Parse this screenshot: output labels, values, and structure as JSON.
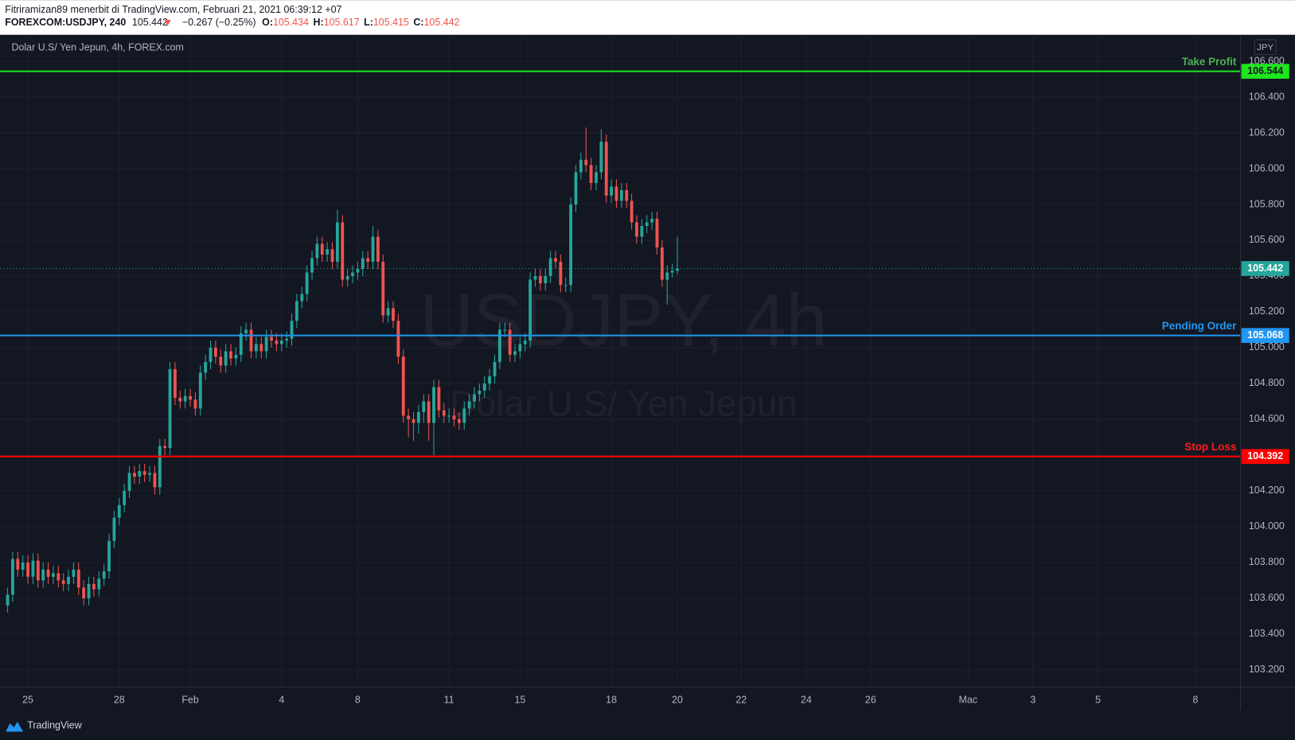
{
  "header": {
    "publisher": "Fitriramizan89 menerbit di TradingView.com, Februari 21, 2021 06:39:12 +07",
    "symbol": "FOREXCOM:USDJPY, 240",
    "last": "105.442",
    "change": "−0.267 (−0.25%)",
    "ohlc": [
      {
        "label": "O:",
        "value": "105.434"
      },
      {
        "label": "H:",
        "value": "105.617"
      },
      {
        "label": "L:",
        "value": "105.415"
      },
      {
        "label": "C:",
        "value": "105.442"
      }
    ]
  },
  "footer": {
    "brand": "TradingView"
  },
  "chart_data": {
    "type": "candlestick",
    "title": "Dolar U.S/ Yen Jepun, 4h, FOREX.com",
    "watermark": [
      "USDJPY, 4h",
      "Dolar U.S/ Yen Jepun"
    ],
    "currency": "JPY",
    "up_color": "#26a69a",
    "down_color": "#ef5350",
    "grid": true,
    "open": [
      103.56,
      103.62,
      103.82,
      103.76,
      103.8,
      103.72,
      103.81,
      103.7,
      103.76,
      103.72,
      103.74,
      103.7,
      103.68,
      103.72,
      103.76,
      103.66,
      103.6,
      103.68,
      103.65,
      103.71,
      103.75,
      103.92,
      104.05,
      104.12,
      104.2,
      104.3,
      104.28,
      104.31,
      104.29,
      104.3,
      104.22,
      104.45,
      104.44,
      104.88,
      104.72,
      104.7,
      104.73,
      104.71,
      104.66,
      104.86,
      104.92,
      105.0,
      104.95,
      104.9,
      104.98,
      104.94,
      104.96,
      105.08,
      105.1,
      104.98,
      105.02,
      104.98,
      105.06,
      105.04,
      105.02,
      105.04,
      105.05,
      105.15,
      105.26,
      105.3,
      105.42,
      105.5,
      105.58,
      105.52,
      105.55,
      105.48,
      105.7,
      105.38,
      105.4,
      105.42,
      105.44,
      105.5,
      105.48,
      105.62,
      105.48,
      105.18,
      105.22,
      105.15,
      104.95,
      104.62,
      104.6,
      104.58,
      104.64,
      104.7,
      104.58,
      104.78,
      104.65,
      104.62,
      104.62,
      104.6,
      104.58,
      104.66,
      104.7,
      104.74,
      104.76,
      104.8,
      104.84,
      104.92,
      105.1,
      105.1,
      104.96,
      104.98,
      105.02,
      105.04,
      105.38,
      105.4,
      105.36,
      105.4,
      105.5,
      105.48,
      105.35,
      105.35,
      105.8,
      105.98,
      106.05,
      106.02,
      105.92,
      105.98,
      106.15,
      105.85,
      105.9,
      105.82,
      105.88,
      105.82,
      105.7,
      105.62,
      105.68,
      105.7,
      105.72,
      105.56,
      105.38,
      105.42,
      105.43
    ],
    "high": [
      103.66,
      103.86,
      103.86,
      103.84,
      103.84,
      103.85,
      103.85,
      103.8,
      103.8,
      103.78,
      103.78,
      103.74,
      103.76,
      103.8,
      103.8,
      103.7,
      103.72,
      103.72,
      103.75,
      103.79,
      103.96,
      104.09,
      104.16,
      104.24,
      104.34,
      104.34,
      104.35,
      104.35,
      104.34,
      104.34,
      104.49,
      104.49,
      104.92,
      104.92,
      104.76,
      104.77,
      104.77,
      104.75,
      104.9,
      104.96,
      105.04,
      105.04,
      104.99,
      105.02,
      105.02,
      105.0,
      105.12,
      105.14,
      105.14,
      105.06,
      105.06,
      105.1,
      105.1,
      105.08,
      105.08,
      105.09,
      105.19,
      105.3,
      105.34,
      105.46,
      105.54,
      105.62,
      105.62,
      105.59,
      105.59,
      105.77,
      105.74,
      105.44,
      105.46,
      105.48,
      105.54,
      105.54,
      105.68,
      105.66,
      105.52,
      105.26,
      105.26,
      105.19,
      104.99,
      104.66,
      104.64,
      104.68,
      104.74,
      104.74,
      104.82,
      104.82,
      104.69,
      104.66,
      104.66,
      104.64,
      104.7,
      104.74,
      104.78,
      104.8,
      104.84,
      104.88,
      104.96,
      105.14,
      105.14,
      105.14,
      105.02,
      105.06,
      105.08,
      105.42,
      105.44,
      105.44,
      105.44,
      105.54,
      105.54,
      105.52,
      105.39,
      105.84,
      106.02,
      106.09,
      106.23,
      106.06,
      106.02,
      106.22,
      106.19,
      105.94,
      105.94,
      105.92,
      105.92,
      105.86,
      105.74,
      105.72,
      105.74,
      105.76,
      105.76,
      105.6,
      105.46,
      105.47,
      105.62
    ],
    "low": [
      103.52,
      103.58,
      103.72,
      103.72,
      103.68,
      103.68,
      103.66,
      103.66,
      103.68,
      103.68,
      103.66,
      103.64,
      103.64,
      103.68,
      103.62,
      103.56,
      103.56,
      103.61,
      103.61,
      103.67,
      103.71,
      103.88,
      104.01,
      104.08,
      104.16,
      104.24,
      104.24,
      104.25,
      104.25,
      104.18,
      104.18,
      104.4,
      104.4,
      104.68,
      104.66,
      104.66,
      104.67,
      104.62,
      104.62,
      104.82,
      104.88,
      104.91,
      104.86,
      104.86,
      104.9,
      104.9,
      104.92,
      105.04,
      104.94,
      104.94,
      104.94,
      104.94,
      105.0,
      104.98,
      104.98,
      105.0,
      105.01,
      105.11,
      105.22,
      105.26,
      105.38,
      105.46,
      105.48,
      105.48,
      105.44,
      105.44,
      105.34,
      105.34,
      105.36,
      105.38,
      105.4,
      105.44,
      105.44,
      105.44,
      105.14,
      105.14,
      105.11,
      104.91,
      104.58,
      104.5,
      104.48,
      104.52,
      104.58,
      104.48,
      104.4,
      104.61,
      104.58,
      104.58,
      104.56,
      104.54,
      104.54,
      104.62,
      104.66,
      104.7,
      104.72,
      104.76,
      104.8,
      104.88,
      105.06,
      104.92,
      104.92,
      104.94,
      104.98,
      105.0,
      105.34,
      105.32,
      105.32,
      105.36,
      105.44,
      105.31,
      105.31,
      105.31,
      105.76,
      105.94,
      105.98,
      105.88,
      105.88,
      105.94,
      105.81,
      105.81,
      105.78,
      105.78,
      105.78,
      105.66,
      105.58,
      105.58,
      105.64,
      105.66,
      105.52,
      105.34,
      105.24,
      105.39,
      105.41
    ],
    "close": [
      103.62,
      103.82,
      103.76,
      103.8,
      103.72,
      103.81,
      103.7,
      103.76,
      103.72,
      103.74,
      103.7,
      103.68,
      103.72,
      103.76,
      103.66,
      103.6,
      103.68,
      103.65,
      103.71,
      103.75,
      103.92,
      104.05,
      104.12,
      104.2,
      104.3,
      104.28,
      104.31,
      104.29,
      104.3,
      104.22,
      104.45,
      104.44,
      104.88,
      104.72,
      104.7,
      104.73,
      104.71,
      104.66,
      104.86,
      104.92,
      105.0,
      104.95,
      104.9,
      104.98,
      104.94,
      104.96,
      105.08,
      105.1,
      104.98,
      105.02,
      104.98,
      105.06,
      105.04,
      105.02,
      105.04,
      105.05,
      105.15,
      105.26,
      105.3,
      105.42,
      105.5,
      105.58,
      105.52,
      105.55,
      105.48,
      105.7,
      105.38,
      105.4,
      105.42,
      105.44,
      105.5,
      105.48,
      105.62,
      105.48,
      105.18,
      105.22,
      105.15,
      104.95,
      104.62,
      104.6,
      104.58,
      104.64,
      104.7,
      104.58,
      104.78,
      104.65,
      104.62,
      104.62,
      104.6,
      104.58,
      104.66,
      104.7,
      104.74,
      104.76,
      104.8,
      104.84,
      104.92,
      105.1,
      105.1,
      104.96,
      104.98,
      105.02,
      105.04,
      105.38,
      105.4,
      105.36,
      105.4,
      105.5,
      105.48,
      105.35,
      105.35,
      105.8,
      105.98,
      106.05,
      106.02,
      105.92,
      105.98,
      106.15,
      105.85,
      105.9,
      105.82,
      105.88,
      105.82,
      105.7,
      105.62,
      105.68,
      105.7,
      105.72,
      105.56,
      105.38,
      105.42,
      105.43,
      105.442
    ],
    "xlim": [
      -1.5,
      243
    ],
    "xticks": [
      {
        "value": 4,
        "label": "25"
      },
      {
        "value": 22,
        "label": "28"
      },
      {
        "value": 36,
        "label": "Feb"
      },
      {
        "value": 54,
        "label": "4"
      },
      {
        "value": 69,
        "label": "8"
      },
      {
        "value": 87,
        "label": "11"
      },
      {
        "value": 101,
        "label": "15"
      },
      {
        "value": 119,
        "label": "18"
      },
      {
        "value": 132,
        "label": "20"
      },
      {
        "value": 144.6,
        "label": "22"
      },
      {
        "value": 157.4,
        "label": "24"
      },
      {
        "value": 170.1,
        "label": "26"
      },
      {
        "value": 189.3,
        "label": "Mac"
      },
      {
        "value": 202.1,
        "label": "3"
      },
      {
        "value": 214.9,
        "label": "5"
      },
      {
        "value": 234.1,
        "label": "8"
      }
    ],
    "ylim": [
      103.104,
      106.748
    ],
    "yticks": [
      {
        "value": 103.2,
        "label": "103.200"
      },
      {
        "value": 103.4,
        "label": "103.400"
      },
      {
        "value": 103.6,
        "label": "103.600"
      },
      {
        "value": 103.8,
        "label": "103.800"
      },
      {
        "value": 104,
        "label": "104.000"
      },
      {
        "value": 104.2,
        "label": "104.200"
      },
      {
        "value": 104.4,
        "label": "104.400"
      },
      {
        "value": 104.6,
        "label": "104.600"
      },
      {
        "value": 104.8,
        "label": "104.800"
      },
      {
        "value": 105,
        "label": "105.000"
      },
      {
        "value": 105.2,
        "label": "105.200"
      },
      {
        "value": 105.4,
        "label": "105.400"
      },
      {
        "value": 105.6,
        "label": "105.600"
      },
      {
        "value": 105.8,
        "label": "105.800"
      },
      {
        "value": 106,
        "label": "106.000"
      },
      {
        "value": 106.2,
        "label": "106.200"
      },
      {
        "value": 106.4,
        "label": "106.400"
      },
      {
        "value": 106.6,
        "label": "106.600"
      }
    ],
    "last_price": {
      "value": 105.442,
      "color": "#26a69a"
    },
    "levels": [
      {
        "name": "Take Profit",
        "value": 106.544,
        "color": "#1ee61e",
        "label_color": "#4caf50"
      },
      {
        "name": "Pending Order",
        "value": 105.068,
        "color": "#2196f3",
        "label_color": "#2196f3"
      },
      {
        "name": "Stop Loss",
        "value": 104.392,
        "color": "#ff0000",
        "label_color": "#ff1a1a"
      }
    ]
  }
}
